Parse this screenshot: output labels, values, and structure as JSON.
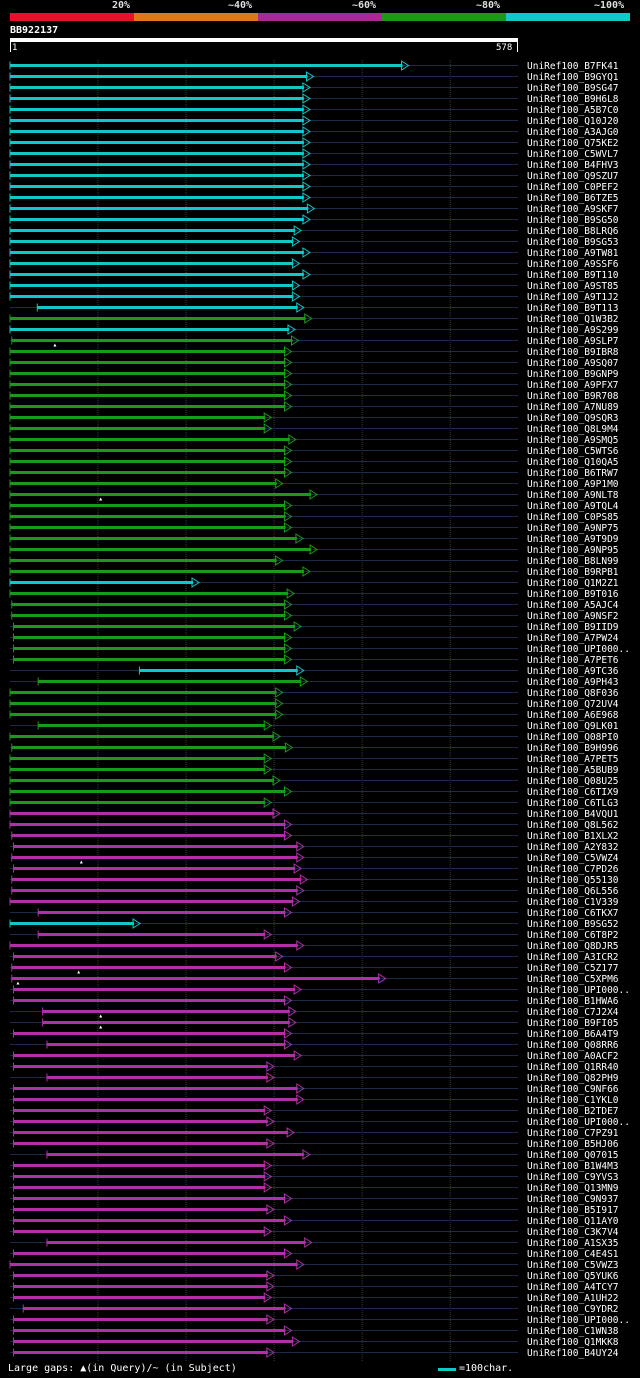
{
  "legend": {
    "labels": [
      "20%",
      "~40%",
      "~60%",
      "~80%",
      "~100%"
    ],
    "colors": [
      "#e8112b",
      "#e07818",
      "#a82a98",
      "#1a9a1a",
      "#11c8c8"
    ]
  },
  "query": {
    "name": "BB922137",
    "start": "1",
    "end": "578",
    "length": 578
  },
  "footer": {
    "gaps": "Large gaps: ▲(in Query)/~ (in Subject)",
    "scale": "=100char."
  },
  "colors": {
    "cyan": "#11c8c8",
    "green": "#1a9a1a",
    "magenta": "#b030a8",
    "gridline": "#3a3a3a",
    "track": "#1c2a4a"
  },
  "hits": [
    {
      "name": "UniRef100_B7FK41",
      "color": "cyan",
      "start": 1,
      "end": 448
    },
    {
      "name": "UniRef100_B9GYQ1",
      "color": "cyan",
      "start": 1,
      "end": 340
    },
    {
      "name": "UniRef100_B9SG47",
      "color": "cyan",
      "start": 1,
      "end": 336
    },
    {
      "name": "UniRef100_B9H6L8",
      "color": "cyan",
      "start": 1,
      "end": 336
    },
    {
      "name": "UniRef100_A5B7C0",
      "color": "cyan",
      "start": 1,
      "end": 336
    },
    {
      "name": "UniRef100_Q10J20",
      "color": "cyan",
      "start": 1,
      "end": 336
    },
    {
      "name": "UniRef100_A3AJG0",
      "color": "cyan",
      "start": 1,
      "end": 336
    },
    {
      "name": "UniRef100_Q75KE2",
      "color": "cyan",
      "start": 1,
      "end": 336
    },
    {
      "name": "UniRef100_C5WVL7",
      "color": "cyan",
      "start": 1,
      "end": 336
    },
    {
      "name": "UniRef100_B4FHV3",
      "color": "cyan",
      "start": 1,
      "end": 336
    },
    {
      "name": "UniRef100_Q9SZU7",
      "color": "cyan",
      "start": 1,
      "end": 336
    },
    {
      "name": "UniRef100_C0PEF2",
      "color": "cyan",
      "start": 1,
      "end": 336
    },
    {
      "name": "UniRef100_B6TZE5",
      "color": "cyan",
      "start": 1,
      "end": 336
    },
    {
      "name": "UniRef100_A9SKF7",
      "color": "cyan",
      "start": 1,
      "end": 341
    },
    {
      "name": "UniRef100_B9SG50",
      "color": "cyan",
      "start": 1,
      "end": 336
    },
    {
      "name": "UniRef100_B8LRQ6",
      "color": "cyan",
      "start": 1,
      "end": 326
    },
    {
      "name": "UniRef100_B9SG53",
      "color": "cyan",
      "start": 1,
      "end": 324
    },
    {
      "name": "UniRef100_A9TW81",
      "color": "cyan",
      "start": 1,
      "end": 336
    },
    {
      "name": "UniRef100_A9SSF6",
      "color": "cyan",
      "start": 1,
      "end": 324
    },
    {
      "name": "UniRef100_B9T110",
      "color": "cyan",
      "start": 1,
      "end": 336
    },
    {
      "name": "UniRef100_A9ST85",
      "color": "cyan",
      "start": 1,
      "end": 324
    },
    {
      "name": "UniRef100_A9T1J2",
      "color": "cyan",
      "start": 1,
      "end": 324
    },
    {
      "name": "UniRef100_B9T113",
      "color": "cyan",
      "start": 32,
      "end": 329
    },
    {
      "name": "UniRef100_Q1W3B2",
      "color": "green",
      "start": 1,
      "end": 338
    },
    {
      "name": "UniRef100_A9S299",
      "color": "cyan",
      "start": 1,
      "end": 319
    },
    {
      "name": "UniRef100_A9SLP7",
      "color": "green",
      "start": 3,
      "end": 323,
      "gapq": 52
    },
    {
      "name": "UniRef100_B9IBR8",
      "color": "green",
      "start": 1,
      "end": 315
    },
    {
      "name": "UniRef100_A9SQ07",
      "color": "green",
      "start": 1,
      "end": 315
    },
    {
      "name": "UniRef100_B9GNP9",
      "color": "green",
      "start": 1,
      "end": 315
    },
    {
      "name": "UniRef100_A9PFX7",
      "color": "green",
      "start": 1,
      "end": 315
    },
    {
      "name": "UniRef100_B9R708",
      "color": "green",
      "start": 1,
      "end": 315
    },
    {
      "name": "UniRef100_A7NU89",
      "color": "green",
      "start": 1,
      "end": 315
    },
    {
      "name": "UniRef100_Q9SQR3",
      "color": "green",
      "start": 1,
      "end": 292
    },
    {
      "name": "UniRef100_Q8L9M4",
      "color": "green",
      "start": 1,
      "end": 292
    },
    {
      "name": "UniRef100_A9SMQ5",
      "color": "green",
      "start": 1,
      "end": 320
    },
    {
      "name": "UniRef100_C5WTS6",
      "color": "green",
      "start": 1,
      "end": 315
    },
    {
      "name": "UniRef100_Q10QA5",
      "color": "green",
      "start": 1,
      "end": 315
    },
    {
      "name": "UniRef100_B6TRW7",
      "color": "green",
      "start": 1,
      "end": 315
    },
    {
      "name": "UniRef100_A9P1M0",
      "color": "green",
      "start": 1,
      "end": 305
    },
    {
      "name": "UniRef100_A9NLT8",
      "color": "green",
      "start": 1,
      "end": 344,
      "gapq": 104
    },
    {
      "name": "UniRef100_A9TQL4",
      "color": "green",
      "start": 1,
      "end": 315
    },
    {
      "name": "UniRef100_C0PS85",
      "color": "green",
      "start": 1,
      "end": 315
    },
    {
      "name": "UniRef100_A9NP75",
      "color": "green",
      "start": 1,
      "end": 315
    },
    {
      "name": "UniRef100_A9T9D9",
      "color": "green",
      "start": 1,
      "end": 328
    },
    {
      "name": "UniRef100_A9NP95",
      "color": "green",
      "start": 1,
      "end": 344
    },
    {
      "name": "UniRef100_B8LN99",
      "color": "green",
      "start": 1,
      "end": 305
    },
    {
      "name": "UniRef100_B9RPB1",
      "color": "green",
      "start": 1,
      "end": 336
    },
    {
      "name": "UniRef100_Q1M2Z1",
      "color": "cyan",
      "start": 1,
      "end": 210
    },
    {
      "name": "UniRef100_B9T016",
      "color": "green",
      "start": 1,
      "end": 318
    },
    {
      "name": "UniRef100_A5AJC4",
      "color": "green",
      "start": 3,
      "end": 315
    },
    {
      "name": "UniRef100_A9NSF2",
      "color": "green",
      "start": 3,
      "end": 315
    },
    {
      "name": "UniRef100_B9IID9",
      "color": "green",
      "start": 5,
      "end": 326
    },
    {
      "name": "UniRef100_A7PW24",
      "color": "green",
      "start": 5,
      "end": 315
    },
    {
      "name": "UniRef100_UPI000..",
      "color": "green",
      "start": 5,
      "end": 315
    },
    {
      "name": "UniRef100_A7PET6",
      "color": "green",
      "start": 5,
      "end": 315
    },
    {
      "name": "UniRef100_A9TC36",
      "color": "cyan",
      "start": 148,
      "end": 329
    },
    {
      "name": "UniRef100_A9PH43",
      "color": "green",
      "start": 33,
      "end": 333
    },
    {
      "name": "UniRef100_Q8F036",
      "color": "green",
      "start": 1,
      "end": 305
    },
    {
      "name": "UniRef100_Q72UV4",
      "color": "green",
      "start": 1,
      "end": 305
    },
    {
      "name": "UniRef100_A6E968",
      "color": "green",
      "start": 1,
      "end": 305
    },
    {
      "name": "UniRef100_Q9LK01",
      "color": "green",
      "start": 33,
      "end": 292
    },
    {
      "name": "UniRef100_Q08PI0",
      "color": "green",
      "start": 1,
      "end": 302
    },
    {
      "name": "UniRef100_B9H996",
      "color": "green",
      "start": 3,
      "end": 316
    },
    {
      "name": "UniRef100_A7PET5",
      "color": "green",
      "start": 1,
      "end": 292
    },
    {
      "name": "UniRef100_A5BUB9",
      "color": "green",
      "start": 1,
      "end": 292
    },
    {
      "name": "UniRef100_Q08U25",
      "color": "green",
      "start": 1,
      "end": 302
    },
    {
      "name": "UniRef100_C6TIX9",
      "color": "green",
      "start": 1,
      "end": 315
    },
    {
      "name": "UniRef100_C6TLG3",
      "color": "green",
      "start": 1,
      "end": 292
    },
    {
      "name": "UniRef100_B4VQU1",
      "color": "magenta",
      "start": 1,
      "end": 302
    },
    {
      "name": "UniRef100_Q8L562",
      "color": "magenta",
      "start": 1,
      "end": 315
    },
    {
      "name": "UniRef100_B1XLX2",
      "color": "magenta",
      "start": 3,
      "end": 315
    },
    {
      "name": "UniRef100_A2Y832",
      "color": "magenta",
      "start": 5,
      "end": 329
    },
    {
      "name": "UniRef100_C5VWZ4",
      "color": "magenta",
      "start": 3,
      "end": 329,
      "gapq": 82
    },
    {
      "name": "UniRef100_C7PD26",
      "color": "magenta",
      "start": 5,
      "end": 326
    },
    {
      "name": "UniRef100_Q55130",
      "color": "magenta",
      "start": 3,
      "end": 333
    },
    {
      "name": "UniRef100_Q6L556",
      "color": "magenta",
      "start": 3,
      "end": 329
    },
    {
      "name": "UniRef100_C1V339",
      "color": "magenta",
      "start": 1,
      "end": 324
    },
    {
      "name": "UniRef100_C6TKX7",
      "color": "magenta",
      "start": 33,
      "end": 315
    },
    {
      "name": "UniRef100_B9SG52",
      "color": "cyan",
      "start": 1,
      "end": 143
    },
    {
      "name": "UniRef100_C6T8P2",
      "color": "magenta",
      "start": 33,
      "end": 292
    },
    {
      "name": "UniRef100_Q8DJR5",
      "color": "magenta",
      "start": 1,
      "end": 329
    },
    {
      "name": "UniRef100_A3ICR2",
      "color": "magenta",
      "start": 5,
      "end": 305
    },
    {
      "name": "UniRef100_C5Z177",
      "color": "magenta",
      "start": 3,
      "end": 315,
      "gapq": 79
    },
    {
      "name": "UniRef100_C5XPM6",
      "color": "magenta",
      "start": 3,
      "end": 422,
      "gapq": 10
    },
    {
      "name": "UniRef100_UPI000..",
      "color": "magenta",
      "start": 5,
      "end": 326
    },
    {
      "name": "UniRef100_B1HWA6",
      "color": "magenta",
      "start": 5,
      "end": 315
    },
    {
      "name": "UniRef100_C7J2X4",
      "color": "magenta",
      "start": 38,
      "end": 320,
      "gapq": 104
    },
    {
      "name": "UniRef100_B9FI05",
      "color": "magenta",
      "start": 38,
      "end": 320,
      "gapq": 104
    },
    {
      "name": "UniRef100_B6A4T9",
      "color": "magenta",
      "start": 5,
      "end": 315
    },
    {
      "name": "UniRef100_Q08RR6",
      "color": "magenta",
      "start": 43,
      "end": 315
    },
    {
      "name": "UniRef100_A0ACF2",
      "color": "magenta",
      "start": 5,
      "end": 326
    },
    {
      "name": "UniRef100_Q1RR40",
      "color": "magenta",
      "start": 5,
      "end": 295
    },
    {
      "name": "UniRef100_Q82PH9",
      "color": "magenta",
      "start": 43,
      "end": 295
    },
    {
      "name": "UniRef100_C9NF66",
      "color": "magenta",
      "start": 5,
      "end": 329
    },
    {
      "name": "UniRef100_C1YKL0",
      "color": "magenta",
      "start": 5,
      "end": 329
    },
    {
      "name": "UniRef100_B2TDE7",
      "color": "magenta",
      "start": 5,
      "end": 292
    },
    {
      "name": "UniRef100_UPI000..",
      "color": "magenta",
      "start": 5,
      "end": 295
    },
    {
      "name": "UniRef100_C7PZ91",
      "color": "magenta",
      "start": 5,
      "end": 318
    },
    {
      "name": "UniRef100_B5HJ06",
      "color": "magenta",
      "start": 5,
      "end": 295
    },
    {
      "name": "UniRef100_Q07015",
      "color": "magenta",
      "start": 43,
      "end": 336
    },
    {
      "name": "UniRef100_B1W4M3",
      "color": "magenta",
      "start": 5,
      "end": 292
    },
    {
      "name": "UniRef100_C9YVS3",
      "color": "magenta",
      "start": 5,
      "end": 292
    },
    {
      "name": "UniRef100_Q13MN9",
      "color": "magenta",
      "start": 5,
      "end": 292
    },
    {
      "name": "UniRef100_C9N937",
      "color": "magenta",
      "start": 5,
      "end": 315
    },
    {
      "name": "UniRef100_B5I917",
      "color": "magenta",
      "start": 5,
      "end": 295
    },
    {
      "name": "UniRef100_Q11AY0",
      "color": "magenta",
      "start": 5,
      "end": 315
    },
    {
      "name": "UniRef100_C3K7V4",
      "color": "magenta",
      "start": 5,
      "end": 292
    },
    {
      "name": "UniRef100_A1SX35",
      "color": "magenta",
      "start": 43,
      "end": 338
    },
    {
      "name": "UniRef100_C4E4S1",
      "color": "magenta",
      "start": 5,
      "end": 315
    },
    {
      "name": "UniRef100_C5VWZ3",
      "color": "magenta",
      "start": 1,
      "end": 329
    },
    {
      "name": "UniRef100_Q5YUK6",
      "color": "magenta",
      "start": 5,
      "end": 295
    },
    {
      "name": "UniRef100_A4TCY7",
      "color": "magenta",
      "start": 5,
      "end": 295
    },
    {
      "name": "UniRef100_A1UH22",
      "color": "magenta",
      "start": 5,
      "end": 292
    },
    {
      "name": "UniRef100_C9YDR2",
      "color": "magenta",
      "start": 16,
      "end": 315
    },
    {
      "name": "UniRef100_UPI000..",
      "color": "magenta",
      "start": 5,
      "end": 295
    },
    {
      "name": "UniRef100_C1WN38",
      "color": "magenta",
      "start": 5,
      "end": 315
    },
    {
      "name": "UniRef100_Q1MKK8",
      "color": "magenta",
      "start": 5,
      "end": 324
    },
    {
      "name": "UniRef100_B4UY24",
      "color": "magenta",
      "start": 5,
      "end": 295
    }
  ]
}
